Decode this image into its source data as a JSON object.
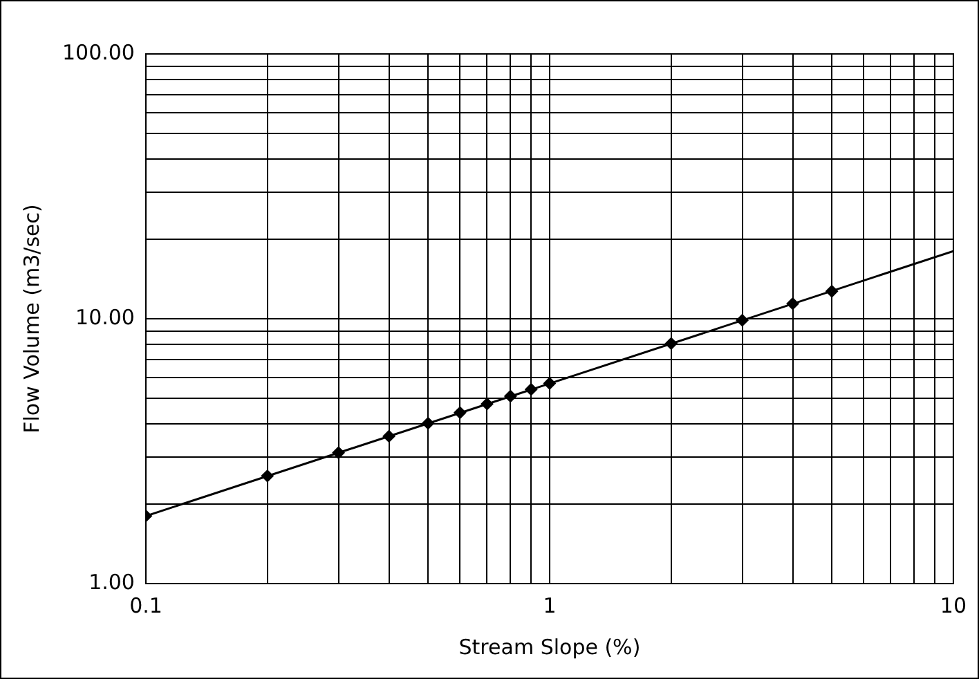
{
  "chart_data": {
    "type": "scatter",
    "xlabel": "Stream Slope (%)",
    "ylabel": "Flow Volume (m3/sec)",
    "log": "xy",
    "grid": true,
    "legend": false,
    "xlim": [
      0.1,
      10
    ],
    "ylim": [
      1,
      100
    ],
    "xticks": [
      0.1,
      {
        "value": 0.2,
        "label": null
      },
      {
        "value": 0.3,
        "label": null
      },
      {
        "value": 0.4,
        "label": null
      },
      {
        "value": 0.5,
        "label": null
      },
      {
        "value": 0.6,
        "label": null
      },
      {
        "value": 0.7,
        "label": null
      },
      {
        "value": 0.8,
        "label": null
      },
      {
        "value": 0.9,
        "label": null
      },
      1,
      {
        "value": 2,
        "label": null
      },
      {
        "value": 3,
        "label": null
      },
      {
        "value": 4,
        "label": null
      },
      {
        "value": 5,
        "label": null
      },
      {
        "value": 6,
        "label": null
      },
      {
        "value": 7,
        "label": null
      },
      {
        "value": 8,
        "label": null
      },
      {
        "value": 9,
        "label": null
      },
      10
    ],
    "yticks": [
      {
        "value": 1,
        "label": "1.00"
      },
      {
        "value": 2,
        "label": null
      },
      {
        "value": 3,
        "label": null
      },
      {
        "value": 4,
        "label": null
      },
      {
        "value": 5,
        "label": null
      },
      {
        "value": 6,
        "label": null
      },
      {
        "value": 7,
        "label": null
      },
      {
        "value": 8,
        "label": null
      },
      {
        "value": 9,
        "label": null
      },
      {
        "value": 10,
        "label": "10.00"
      },
      {
        "value": 20,
        "label": null
      },
      {
        "value": 30,
        "label": null
      },
      {
        "value": 40,
        "label": null
      },
      {
        "value": 50,
        "label": null
      },
      {
        "value": 60,
        "label": null
      },
      {
        "value": 70,
        "label": null
      },
      {
        "value": 80,
        "label": null
      },
      {
        "value": 90,
        "label": null
      },
      {
        "value": 100,
        "label": "100.00"
      }
    ],
    "series": [
      {
        "marker": "diamond",
        "color": "#000000",
        "x": [
          0.1,
          0.2,
          0.3,
          0.4,
          0.5,
          0.6,
          0.7,
          0.8,
          0.9,
          1,
          2,
          3,
          4,
          5
        ],
        "values": [
          1.8,
          2.55,
          3.12,
          3.6,
          4.03,
          4.42,
          4.77,
          5.1,
          5.41,
          5.7,
          8.06,
          9.87,
          11.4,
          12.7
        ]
      },
      {
        "type": "line",
        "marker": "none",
        "color": "#000000",
        "x": [
          0.1,
          10
        ],
        "values": [
          1.8,
          18
        ]
      }
    ]
  }
}
